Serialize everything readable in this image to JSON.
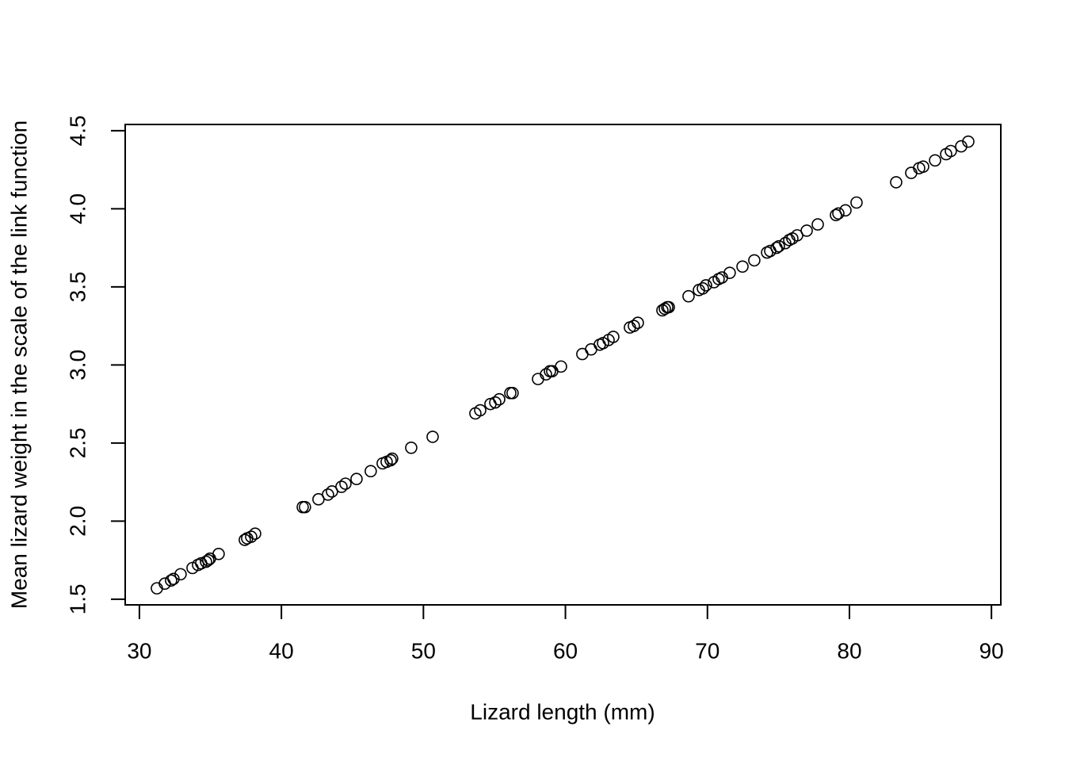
{
  "chart_data": {
    "type": "scatter",
    "xlabel": "Lizard length (mm)",
    "ylabel": "Mean lizard weight in the scale of the link function",
    "x": [
      31.23,
      31.79,
      32.23,
      32.4,
      32.9,
      33.74,
      34.13,
      34.35,
      34.69,
      34.85,
      34.97,
      35.58,
      37.42,
      37.59,
      37.87,
      38.15,
      41.5,
      41.66,
      42.61,
      43.28,
      43.56,
      44.23,
      44.51,
      45.29,
      46.29,
      47.13,
      47.41,
      47.69,
      47.8,
      49.14,
      50.65,
      53.66,
      54.0,
      54.72,
      55.06,
      55.34,
      56.12,
      56.28,
      58.07,
      58.63,
      58.91,
      59.07,
      59.69,
      61.19,
      61.81,
      62.42,
      62.65,
      63.04,
      63.37,
      64.54,
      64.82,
      65.1,
      66.83,
      67.0,
      67.17,
      67.28,
      68.67,
      69.4,
      69.68,
      69.9,
      70.46,
      70.79,
      71.02,
      71.57,
      72.47,
      73.3,
      74.2,
      74.42,
      74.87,
      75.03,
      75.48,
      75.76,
      75.98,
      76.32,
      76.99,
      77.77,
      79.05,
      79.22,
      79.72,
      80.5,
      83.29,
      84.35,
      84.91,
      85.19,
      86.03,
      86.81,
      87.14,
      87.87,
      88.37
    ],
    "values": [
      1.57,
      1.6,
      1.62,
      1.63,
      1.66,
      1.7,
      1.72,
      1.73,
      1.74,
      1.75,
      1.76,
      1.79,
      1.88,
      1.89,
      1.9,
      1.92,
      2.09,
      2.09,
      2.14,
      2.17,
      2.19,
      2.22,
      2.24,
      2.27,
      2.32,
      2.37,
      2.38,
      2.39,
      2.4,
      2.47,
      2.54,
      2.69,
      2.71,
      2.75,
      2.76,
      2.78,
      2.82,
      2.82,
      2.91,
      2.94,
      2.96,
      2.96,
      2.99,
      3.07,
      3.1,
      3.13,
      3.14,
      3.16,
      3.18,
      3.24,
      3.25,
      3.27,
      3.35,
      3.36,
      3.37,
      3.37,
      3.44,
      3.48,
      3.49,
      3.51,
      3.53,
      3.55,
      3.56,
      3.59,
      3.63,
      3.67,
      3.72,
      3.73,
      3.75,
      3.76,
      3.78,
      3.8,
      3.81,
      3.83,
      3.86,
      3.9,
      3.96,
      3.97,
      3.99,
      4.04,
      4.17,
      4.23,
      4.26,
      4.27,
      4.31,
      4.35,
      4.37,
      4.4,
      4.43
    ],
    "color": "#000000",
    "xlim": [
      29.0,
      90.66
    ],
    "ylim": [
      1.464,
      4.54
    ],
    "xticks": [
      30,
      40,
      50,
      60,
      70,
      80,
      90
    ],
    "yticks": [
      1.5,
      {
        "value": 2,
        "label": "2.0"
      },
      2.5,
      {
        "value": 3,
        "label": "3.0"
      },
      3.5,
      {
        "value": 4,
        "label": "4.0"
      },
      4.5
    ]
  }
}
